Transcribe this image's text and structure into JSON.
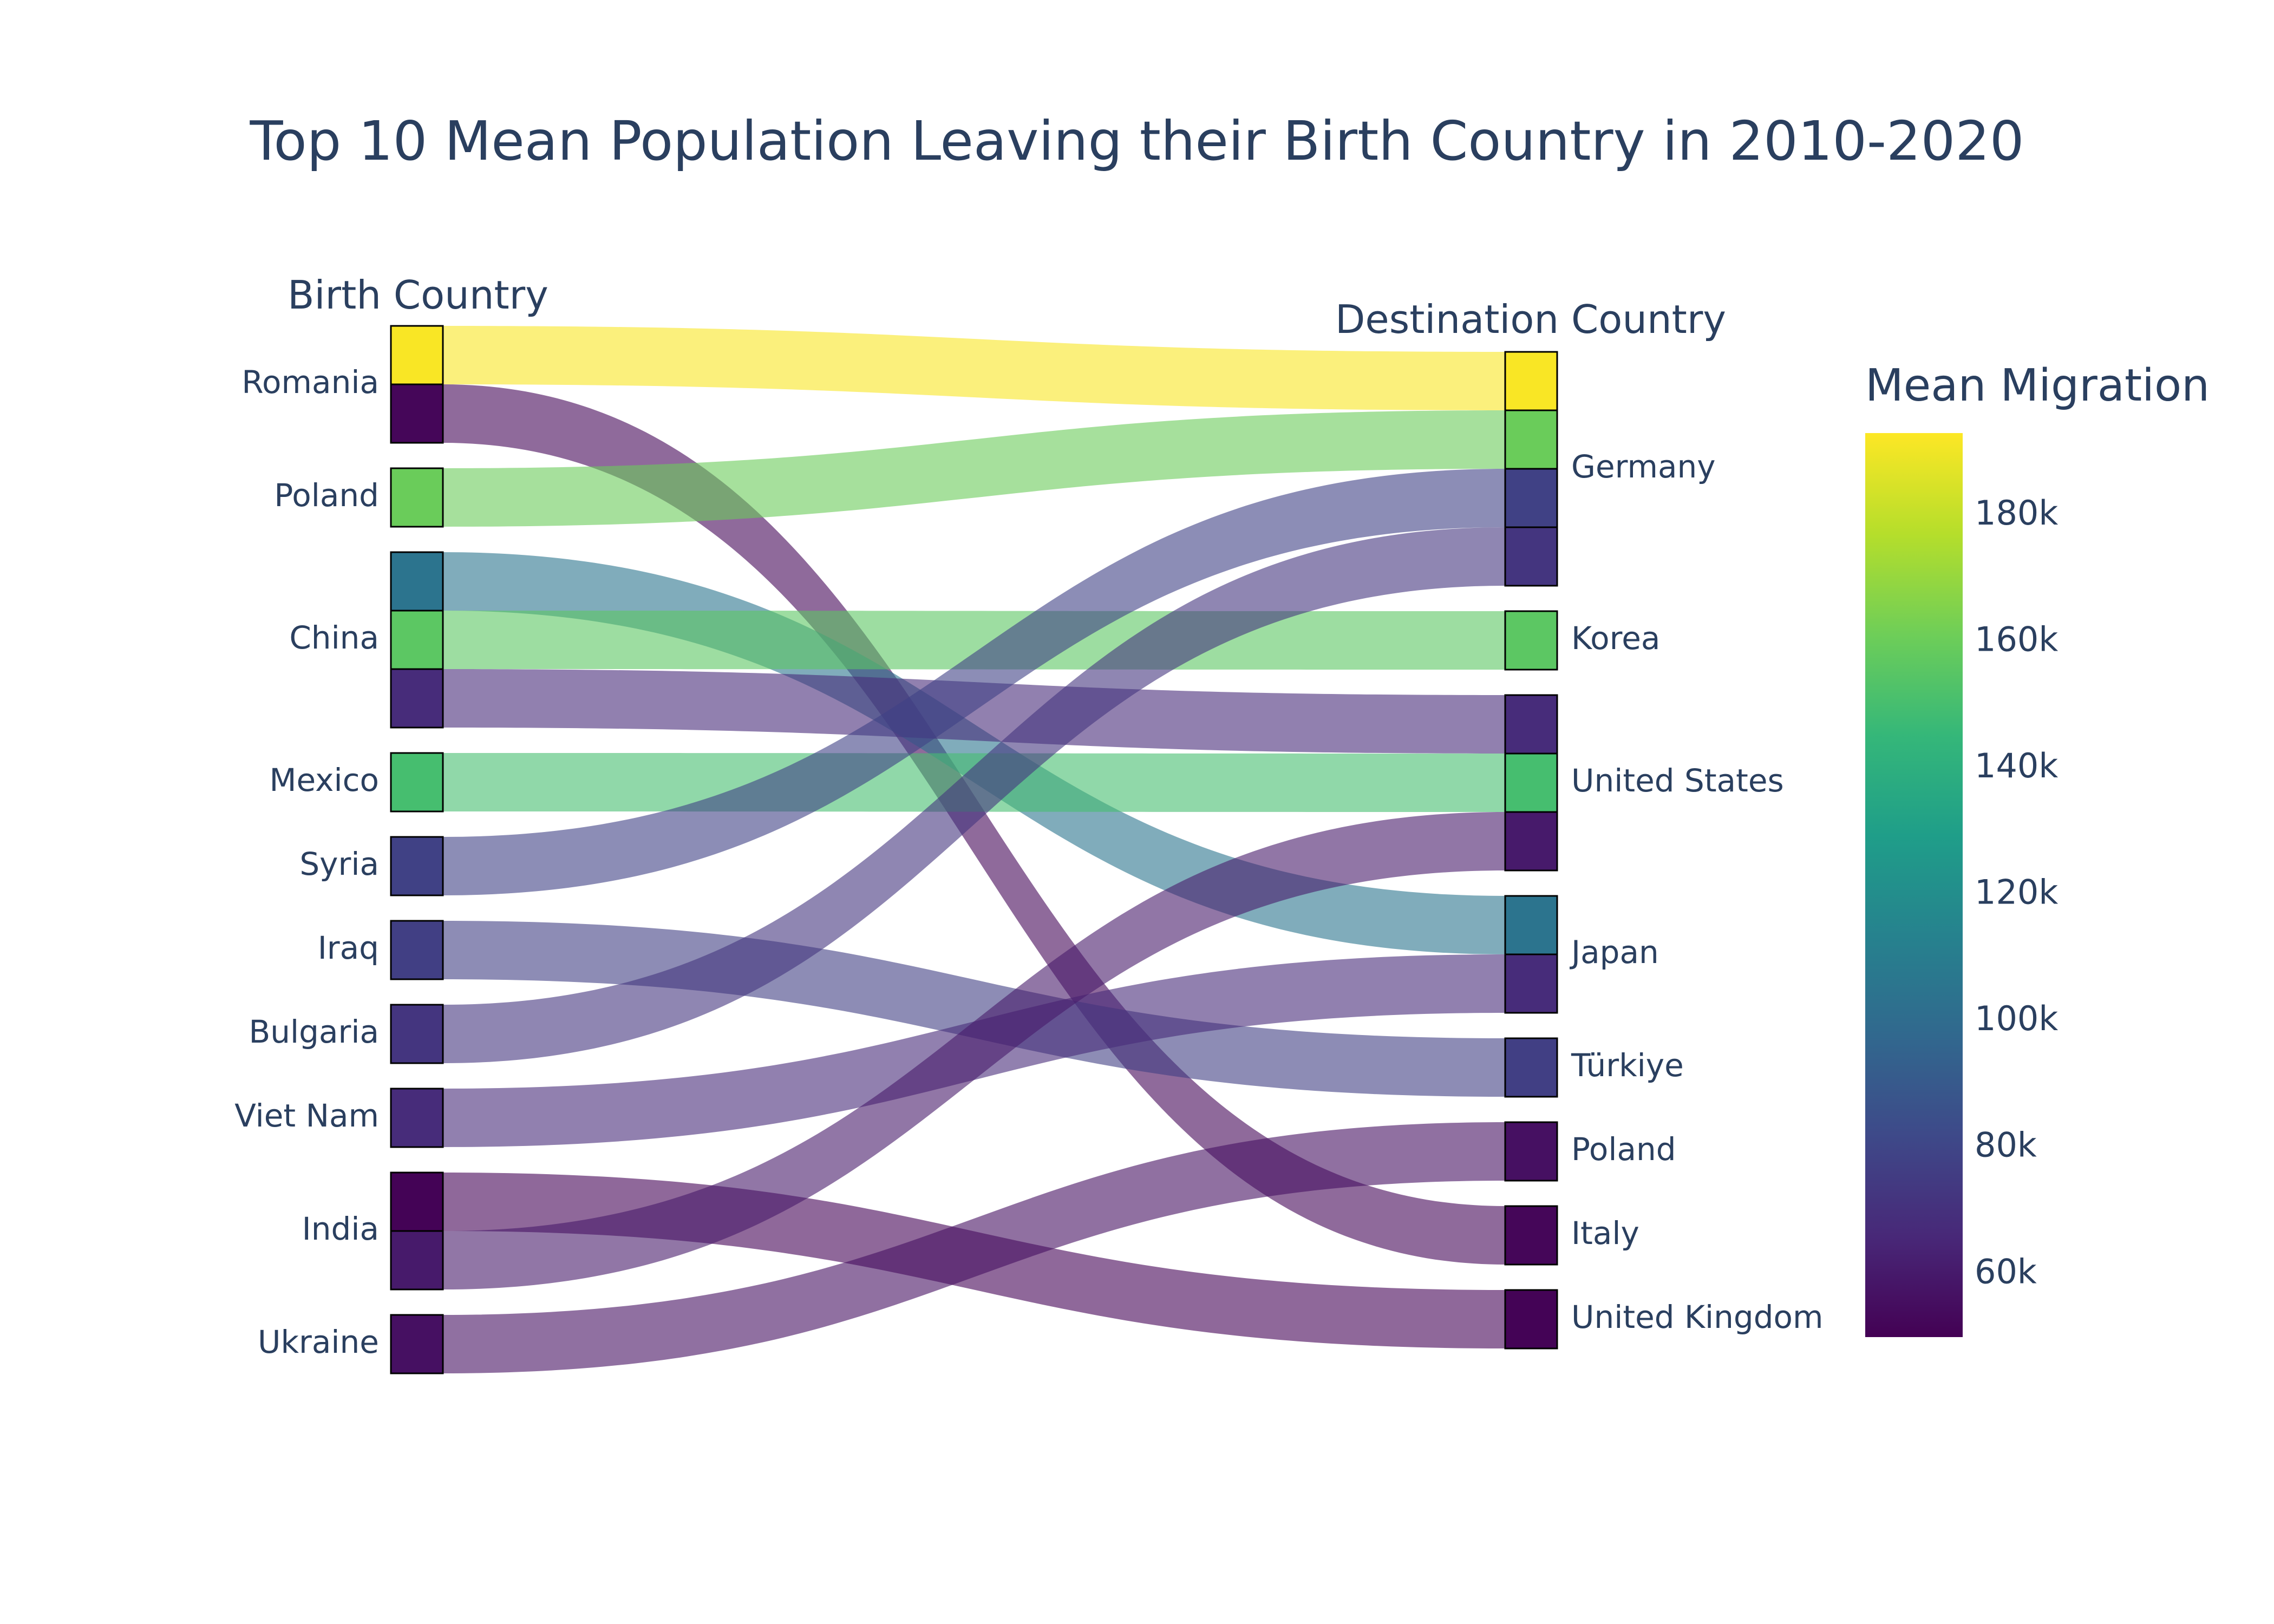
{
  "chart_data": {
    "type": "sankey",
    "title": "Top 10 Mean Population Leaving their Birth Country in 2010-2020",
    "source_header": "Birth Country",
    "target_header": "Destination Country",
    "colorbar": {
      "title": "Mean Migration",
      "range": [
        50000,
        193000
      ],
      "ticks": [
        60000,
        80000,
        100000,
        120000,
        140000,
        160000,
        180000
      ],
      "tick_labels": [
        "60k",
        "80k",
        "100k",
        "120k",
        "140k",
        "160k",
        "180k"
      ],
      "colorscale": "Viridis"
    },
    "sources": [
      "Romania",
      "Poland",
      "China",
      "Mexico",
      "Syria",
      "Iraq",
      "Bulgaria",
      "Viet Nam",
      "India",
      "Ukraine"
    ],
    "destinations": [
      "Germany",
      "Korea",
      "United States",
      "Japan",
      "Türkiye",
      "Poland",
      "Italy",
      "United Kingdom"
    ],
    "flows": [
      {
        "source": "Romania",
        "target": "Germany",
        "value": 192000
      },
      {
        "source": "Romania",
        "target": "Italy",
        "value": 52000
      },
      {
        "source": "Poland",
        "target": "Germany",
        "value": 160000
      },
      {
        "source": "China",
        "target": "Japan",
        "value": 105000
      },
      {
        "source": "China",
        "target": "Korea",
        "value": 156000
      },
      {
        "source": "China",
        "target": "United States",
        "value": 68000
      },
      {
        "source": "Mexico",
        "target": "United States",
        "value": 150000
      },
      {
        "source": "Syria",
        "target": "Germany",
        "value": 78000
      },
      {
        "source": "Iraq",
        "target": "Türkiye",
        "value": 77000
      },
      {
        "source": "Bulgaria",
        "target": "Germany",
        "value": 72000
      },
      {
        "source": "Viet Nam",
        "target": "Japan",
        "value": 68000
      },
      {
        "source": "India",
        "target": "United Kingdom",
        "value": 51000
      },
      {
        "source": "India",
        "target": "United States",
        "value": 60000
      },
      {
        "source": "Ukraine",
        "target": "Poland",
        "value": 56000
      }
    ]
  }
}
